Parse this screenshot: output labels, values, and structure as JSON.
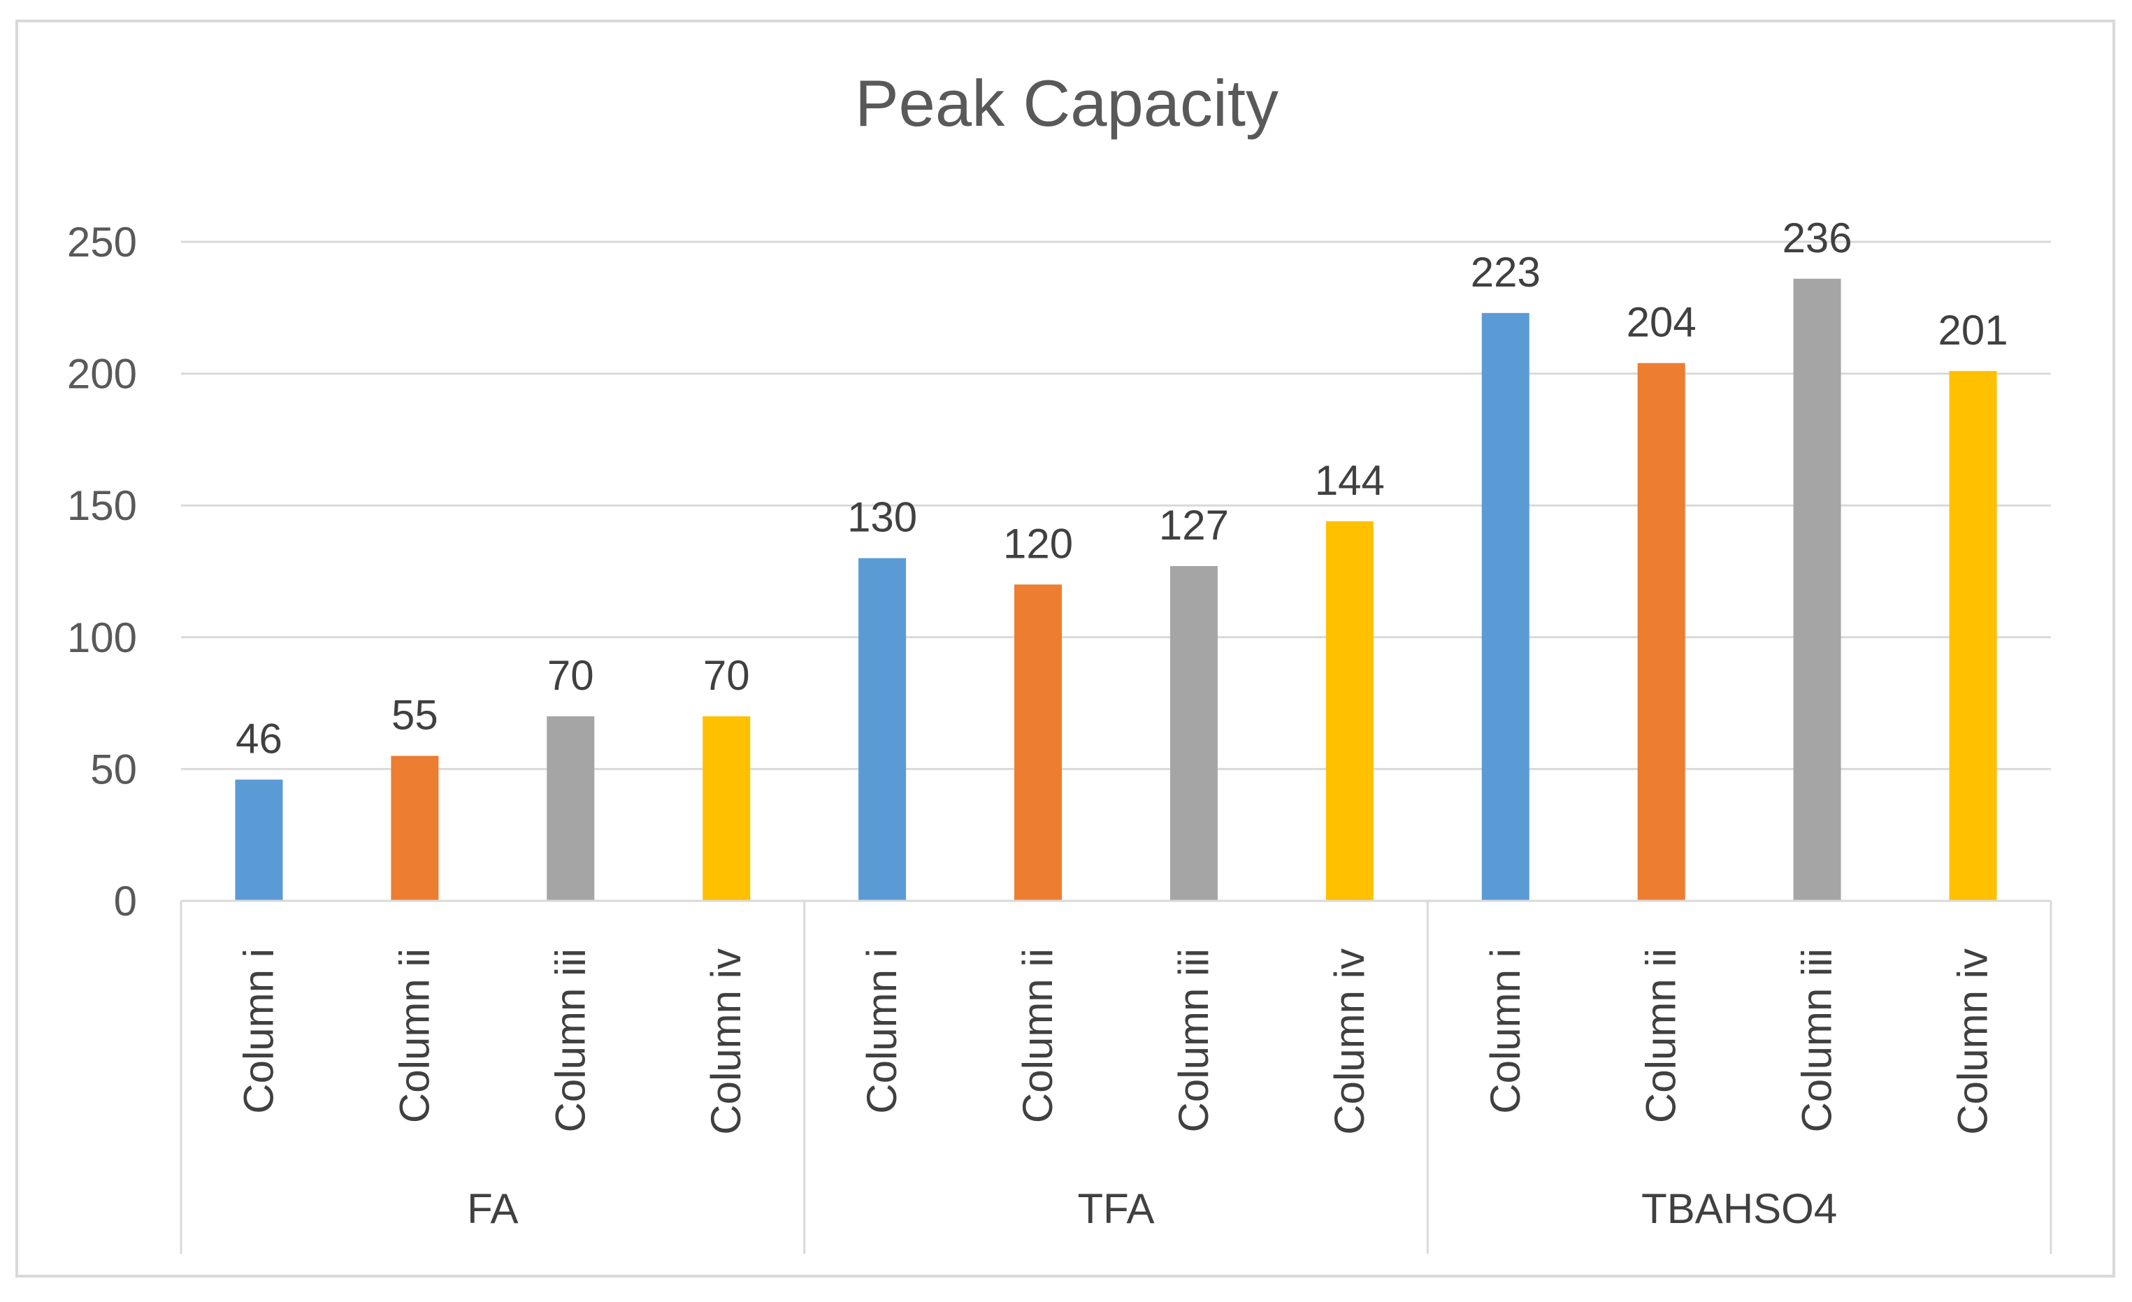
{
  "chart_data": {
    "type": "bar",
    "title": "Peak Capacity",
    "xlabel": "",
    "ylabel": "",
    "ylim": [
      0,
      250
    ],
    "yticks": [
      0,
      50,
      100,
      150,
      200,
      250
    ],
    "grid": true,
    "legend": "none",
    "groups": [
      {
        "name": "FA",
        "categories": [
          "Column i",
          "Column ii",
          "Column iii",
          "Column iv"
        ],
        "values": [
          46,
          55,
          70,
          70
        ]
      },
      {
        "name": "TFA",
        "categories": [
          "Column i",
          "Column ii",
          "Column iii",
          "Column iv"
        ],
        "values": [
          130,
          120,
          127,
          144
        ]
      },
      {
        "name": "TBAHSO4",
        "categories": [
          "Column i",
          "Column ii",
          "Column iii",
          "Column iv"
        ],
        "values": [
          223,
          204,
          236,
          201
        ]
      }
    ],
    "colors": [
      "#5b9bd5",
      "#ed7d31",
      "#a5a5a5",
      "#ffc000"
    ]
  }
}
